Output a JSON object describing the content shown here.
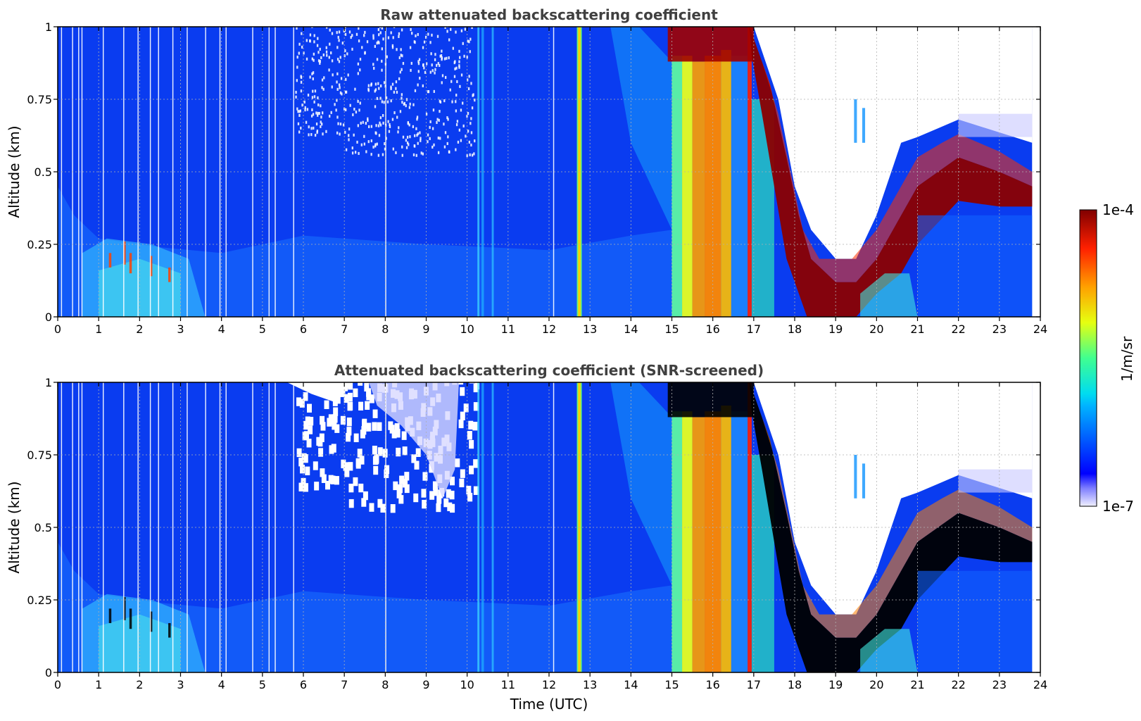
{
  "chart_data": [
    {
      "type": "heatmap",
      "title": "Raw attenuated backscattering coefficient",
      "ylabel": "Altitude (km)",
      "xlabel": "",
      "xlim": [
        0,
        24
      ],
      "ylim": [
        0,
        1
      ],
      "xticks": [
        "0",
        "1",
        "2",
        "3",
        "4",
        "5",
        "6",
        "7",
        "8",
        "9",
        "10",
        "11",
        "12",
        "13",
        "14",
        "15",
        "16",
        "17",
        "18",
        "19",
        "20",
        "21",
        "22",
        "23",
        "24"
      ],
      "yticks": [
        "0",
        "0.25",
        "0.5",
        "0.75",
        "1"
      ],
      "grid": true,
      "screened": false
    },
    {
      "type": "heatmap",
      "title": "Attenuated backscattering coefficient (SNR-screened)",
      "ylabel": "Altitude (km)",
      "xlabel": "Time (UTC)",
      "xlim": [
        0,
        24
      ],
      "ylim": [
        0,
        1
      ],
      "xticks": [
        "0",
        "1",
        "2",
        "3",
        "4",
        "5",
        "6",
        "7",
        "8",
        "9",
        "10",
        "11",
        "12",
        "13",
        "14",
        "15",
        "16",
        "17",
        "18",
        "19",
        "20",
        "21",
        "22",
        "23",
        "24"
      ],
      "yticks": [
        "0",
        "0.25",
        "0.5",
        "0.75",
        "1"
      ],
      "grid": true,
      "screened": true
    }
  ],
  "colorbar": {
    "label": "1/m/sr",
    "max_label": "1e-4",
    "min_label": "1e-7",
    "scale": "log",
    "colormap": "jet"
  },
  "colors": {
    "background": "#0a3cf0",
    "title": "#404040",
    "grid": "#b0b0b0"
  }
}
